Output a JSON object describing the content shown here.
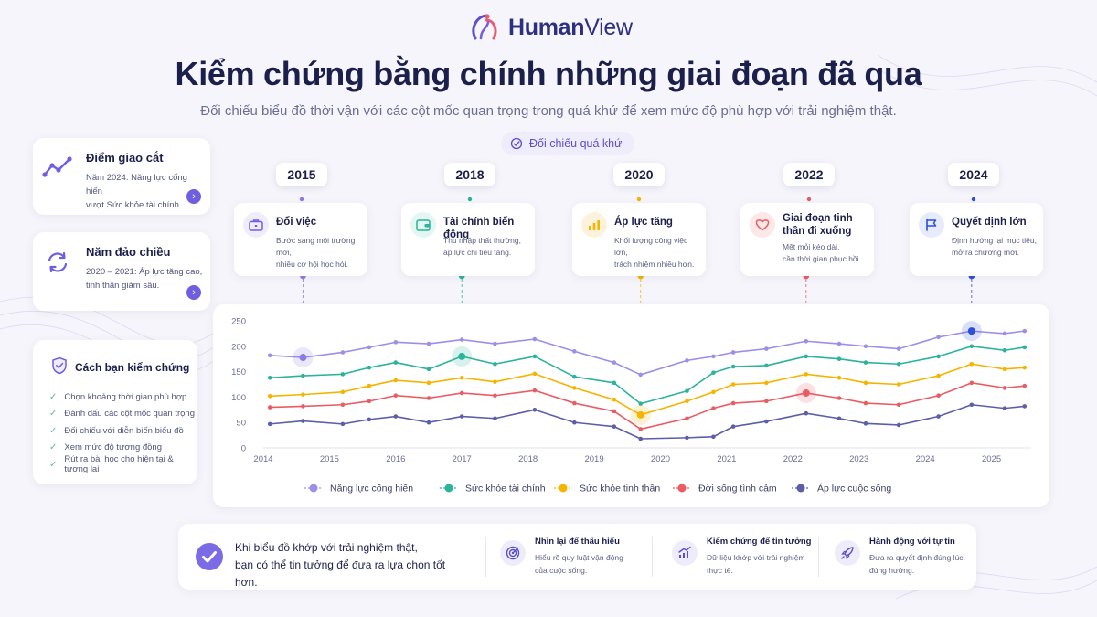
{
  "brand": {
    "name_bold": "Human",
    "name_regular": "View"
  },
  "header": {
    "title": "Kiểm chứng bằng chính những giai đoạn đã qua",
    "subtitle": "Đối chiếu biểu đồ thời vận với các cột mốc quan trọng trong quá khứ để xem mức độ phù hợp với trải nghiệm thật."
  },
  "compare_pill": {
    "label": "Đối chiếu quá khứ",
    "icon": "target-check-icon"
  },
  "left_cards": [
    {
      "title": "Điểm giao cắt",
      "text_lines": [
        "Năm 2024: Năng lực cống hiến",
        "vượt Sức khỏe tài chính."
      ],
      "icon": "trend-line-icon"
    },
    {
      "title": "Năm đảo chiều",
      "text_lines": [
        "2020 – 2021: Áp lực tăng cao,",
        "tinh thần giảm sâu."
      ],
      "icon": "refresh-icon"
    }
  ],
  "verify_card": {
    "title": "Cách bạn kiểm chứng",
    "icon": "shield-check-icon",
    "items": [
      "Chọn khoảng thời gian phù hợp",
      "Đánh dấu các cột mốc quan trọng",
      "Đối chiếu với diễn biến biểu đồ",
      "Xem mức độ tương đồng",
      "Rút ra bài học cho hiện tại & tương lai"
    ]
  },
  "milestones": [
    {
      "year": "2015",
      "title": "Đổi việc",
      "text_lines": [
        "Bước sang môi trường mới,",
        "nhiều cơ hội học hỏi."
      ],
      "icon": "briefcase-icon",
      "color": "#8b7be8",
      "bg": "#efecfc",
      "x_value": 2014.6,
      "series_index": 0
    },
    {
      "year": "2018",
      "title": "Tài chính biến động",
      "text_lines": [
        "Thu nhập thất thường,",
        "áp lực chi tiêu tăng."
      ],
      "icon": "wallet-icon",
      "color": "#2bb39b",
      "bg": "#e3f6f1",
      "x_value": 2017.0,
      "series_index": 1
    },
    {
      "year": "2020",
      "title": "Áp lực tăng",
      "text_lines": [
        "Khối lượng công việc lớn,",
        "trách nhiệm nhiều hơn."
      ],
      "icon": "bar-chart-icon",
      "color": "#f4b400",
      "bg": "#fdf3dc",
      "x_value": 2019.7,
      "series_index": 2
    },
    {
      "year": "2022",
      "title": "Giai đoạn tinh thần đi xuống",
      "text_lines": [
        "Mệt mỏi kéo dài,",
        "cần thời gian phục hồi."
      ],
      "icon": "heart-icon",
      "color": "#ea5b63",
      "bg": "#fde8e9",
      "x_value": 2022.2,
      "series_index": 3
    },
    {
      "year": "2024",
      "title": "Quyết định lớn",
      "text_lines": [
        "Định hướng lại mục tiêu,",
        "mở ra chương mới."
      ],
      "icon": "flag-icon",
      "color": "#2e4fd8",
      "bg": "#e7ebfb",
      "x_value": 2024.7,
      "series_index": 0
    }
  ],
  "chart_data": {
    "type": "line",
    "x_ticks": [
      2014,
      2015,
      2016,
      2017,
      2018,
      2019,
      2020,
      2021,
      2022,
      2023,
      2024,
      2025
    ],
    "y_ticks": [
      0,
      50,
      100,
      150,
      200,
      250
    ],
    "ylim": [
      0,
      250
    ],
    "xlim": [
      2014,
      2025.6
    ],
    "grid": false,
    "legend_placement": "bottom",
    "x": [
      2014.1,
      2014.6,
      2015.2,
      2015.6,
      2016.0,
      2016.5,
      2017.0,
      2017.5,
      2018.1,
      2018.7,
      2019.3,
      2019.7,
      2020.4,
      2020.8,
      2021.1,
      2021.6,
      2022.2,
      2022.7,
      2023.1,
      2023.6,
      2024.2,
      2024.7,
      2025.2,
      2025.5
    ],
    "series": [
      {
        "name": "Năng lực cống hiến",
        "color": "#9f8ee8",
        "values": [
          182,
          178,
          188,
          198,
          208,
          205,
          213,
          205,
          214,
          190,
          168,
          144,
          172,
          180,
          188,
          195,
          210,
          205,
          200,
          195,
          218,
          230,
          225,
          230
        ]
      },
      {
        "name": "Sức khỏe tài chính",
        "color": "#2bb39b",
        "values": [
          138,
          142,
          145,
          158,
          168,
          155,
          180,
          165,
          180,
          140,
          128,
          87,
          112,
          148,
          160,
          162,
          180,
          175,
          168,
          165,
          180,
          200,
          192,
          198
        ]
      },
      {
        "name": "Sức khỏe tinh thần",
        "color": "#f4b400",
        "values": [
          102,
          105,
          110,
          122,
          133,
          128,
          138,
          130,
          146,
          118,
          95,
          65,
          92,
          110,
          125,
          128,
          145,
          138,
          128,
          125,
          142,
          165,
          155,
          158
        ]
      },
      {
        "name": "Đời sống tình cảm",
        "color": "#ea5b63",
        "values": [
          80,
          82,
          85,
          92,
          103,
          98,
          108,
          103,
          113,
          88,
          72,
          37,
          58,
          78,
          88,
          92,
          108,
          98,
          88,
          85,
          103,
          128,
          118,
          122
        ]
      },
      {
        "name": "Áp lực cuộc sống",
        "color": "#5b5ea8",
        "values": [
          47,
          53,
          47,
          56,
          62,
          50,
          62,
          58,
          75,
          50,
          42,
          18,
          20,
          22,
          42,
          52,
          68,
          58,
          48,
          45,
          62,
          85,
          78,
          82
        ]
      }
    ]
  },
  "bottom": {
    "main_lines": [
      "Khi biểu đồ khớp với trải nghiệm thật,",
      "bạn có thể tin tưởng để đưa ra lựa chọn tốt hơn."
    ],
    "items": [
      {
        "title": "Nhìn lại để thấu hiểu",
        "text_lines": [
          "Hiểu rõ quy luật vận động",
          "của cuộc sống."
        ],
        "icon": "target-icon"
      },
      {
        "title": "Kiểm chứng để tin tưởng",
        "text_lines": [
          "Dữ liệu khớp với trải nghiệm",
          "thực tế."
        ],
        "icon": "growth-chart-icon"
      },
      {
        "title": "Hành động với tự tin",
        "text_lines": [
          "Đưa ra quyết định đúng lúc,",
          "đúng hướng."
        ],
        "icon": "rocket-icon"
      }
    ]
  }
}
